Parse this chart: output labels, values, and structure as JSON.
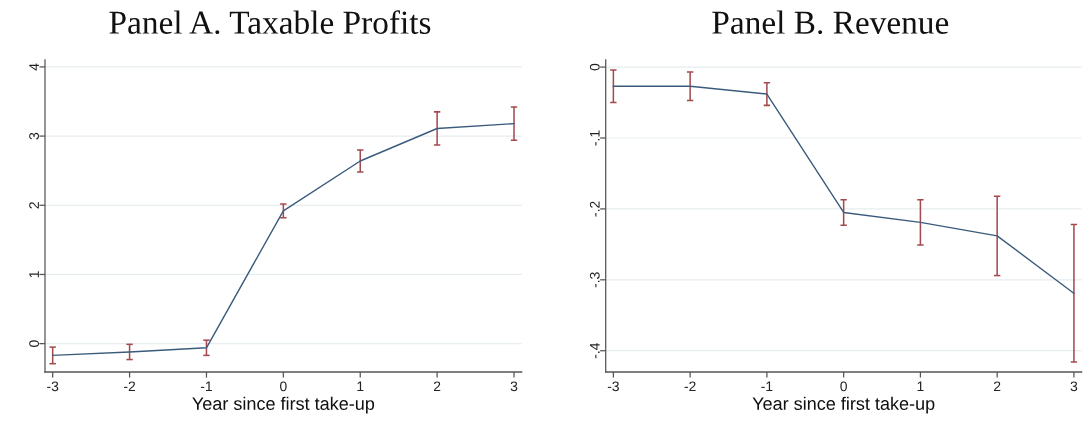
{
  "chart_data": [
    {
      "type": "line",
      "title": "Panel A. Taxable Profits",
      "xlabel": "Year since first take-up",
      "x": [
        -3,
        -2,
        -1,
        0,
        1,
        2,
        3
      ],
      "series": [
        {
          "color": "#3b5b7c",
          "values": [
            -0.17,
            -0.12,
            -0.06,
            1.92,
            2.64,
            3.11,
            3.18
          ],
          "errors": [
            0.12,
            0.11,
            0.11,
            0.1,
            0.16,
            0.24,
            0.24
          ]
        }
      ],
      "xlim": [
        -3.1,
        3.1
      ],
      "xticks": [
        -3,
        -2,
        -1,
        0,
        1,
        2,
        3
      ],
      "ylim": [
        -0.41,
        4.1
      ],
      "yticks": [
        0,
        1,
        2,
        3,
        4
      ],
      "grid": "y"
    },
    {
      "type": "line",
      "title": "Panel B. Revenue",
      "xlabel": "Year since first take-up",
      "x": [
        -3,
        -2,
        -1,
        0,
        1,
        2,
        3
      ],
      "series": [
        {
          "color": "#3b5b7c",
          "values": [
            -0.027,
            -0.027,
            -0.038,
            -0.205,
            -0.219,
            -0.238,
            -0.319
          ],
          "errors": [
            0.023,
            0.02,
            0.016,
            0.018,
            0.032,
            0.056,
            0.097
          ]
        }
      ],
      "xlim": [
        -3.1,
        3.1
      ],
      "xticks": [
        -3,
        -2,
        -1,
        0,
        1,
        2,
        3
      ],
      "ylim": [
        -0.43,
        0.01
      ],
      "yticks": [
        0,
        {
          "value": -0.1,
          "label": "-.1"
        },
        {
          "value": -0.2,
          "label": "-.2"
        },
        {
          "value": -0.3,
          "label": "-.3"
        },
        {
          "value": -0.4,
          "label": "-.4"
        }
      ],
      "grid": "y"
    }
  ]
}
